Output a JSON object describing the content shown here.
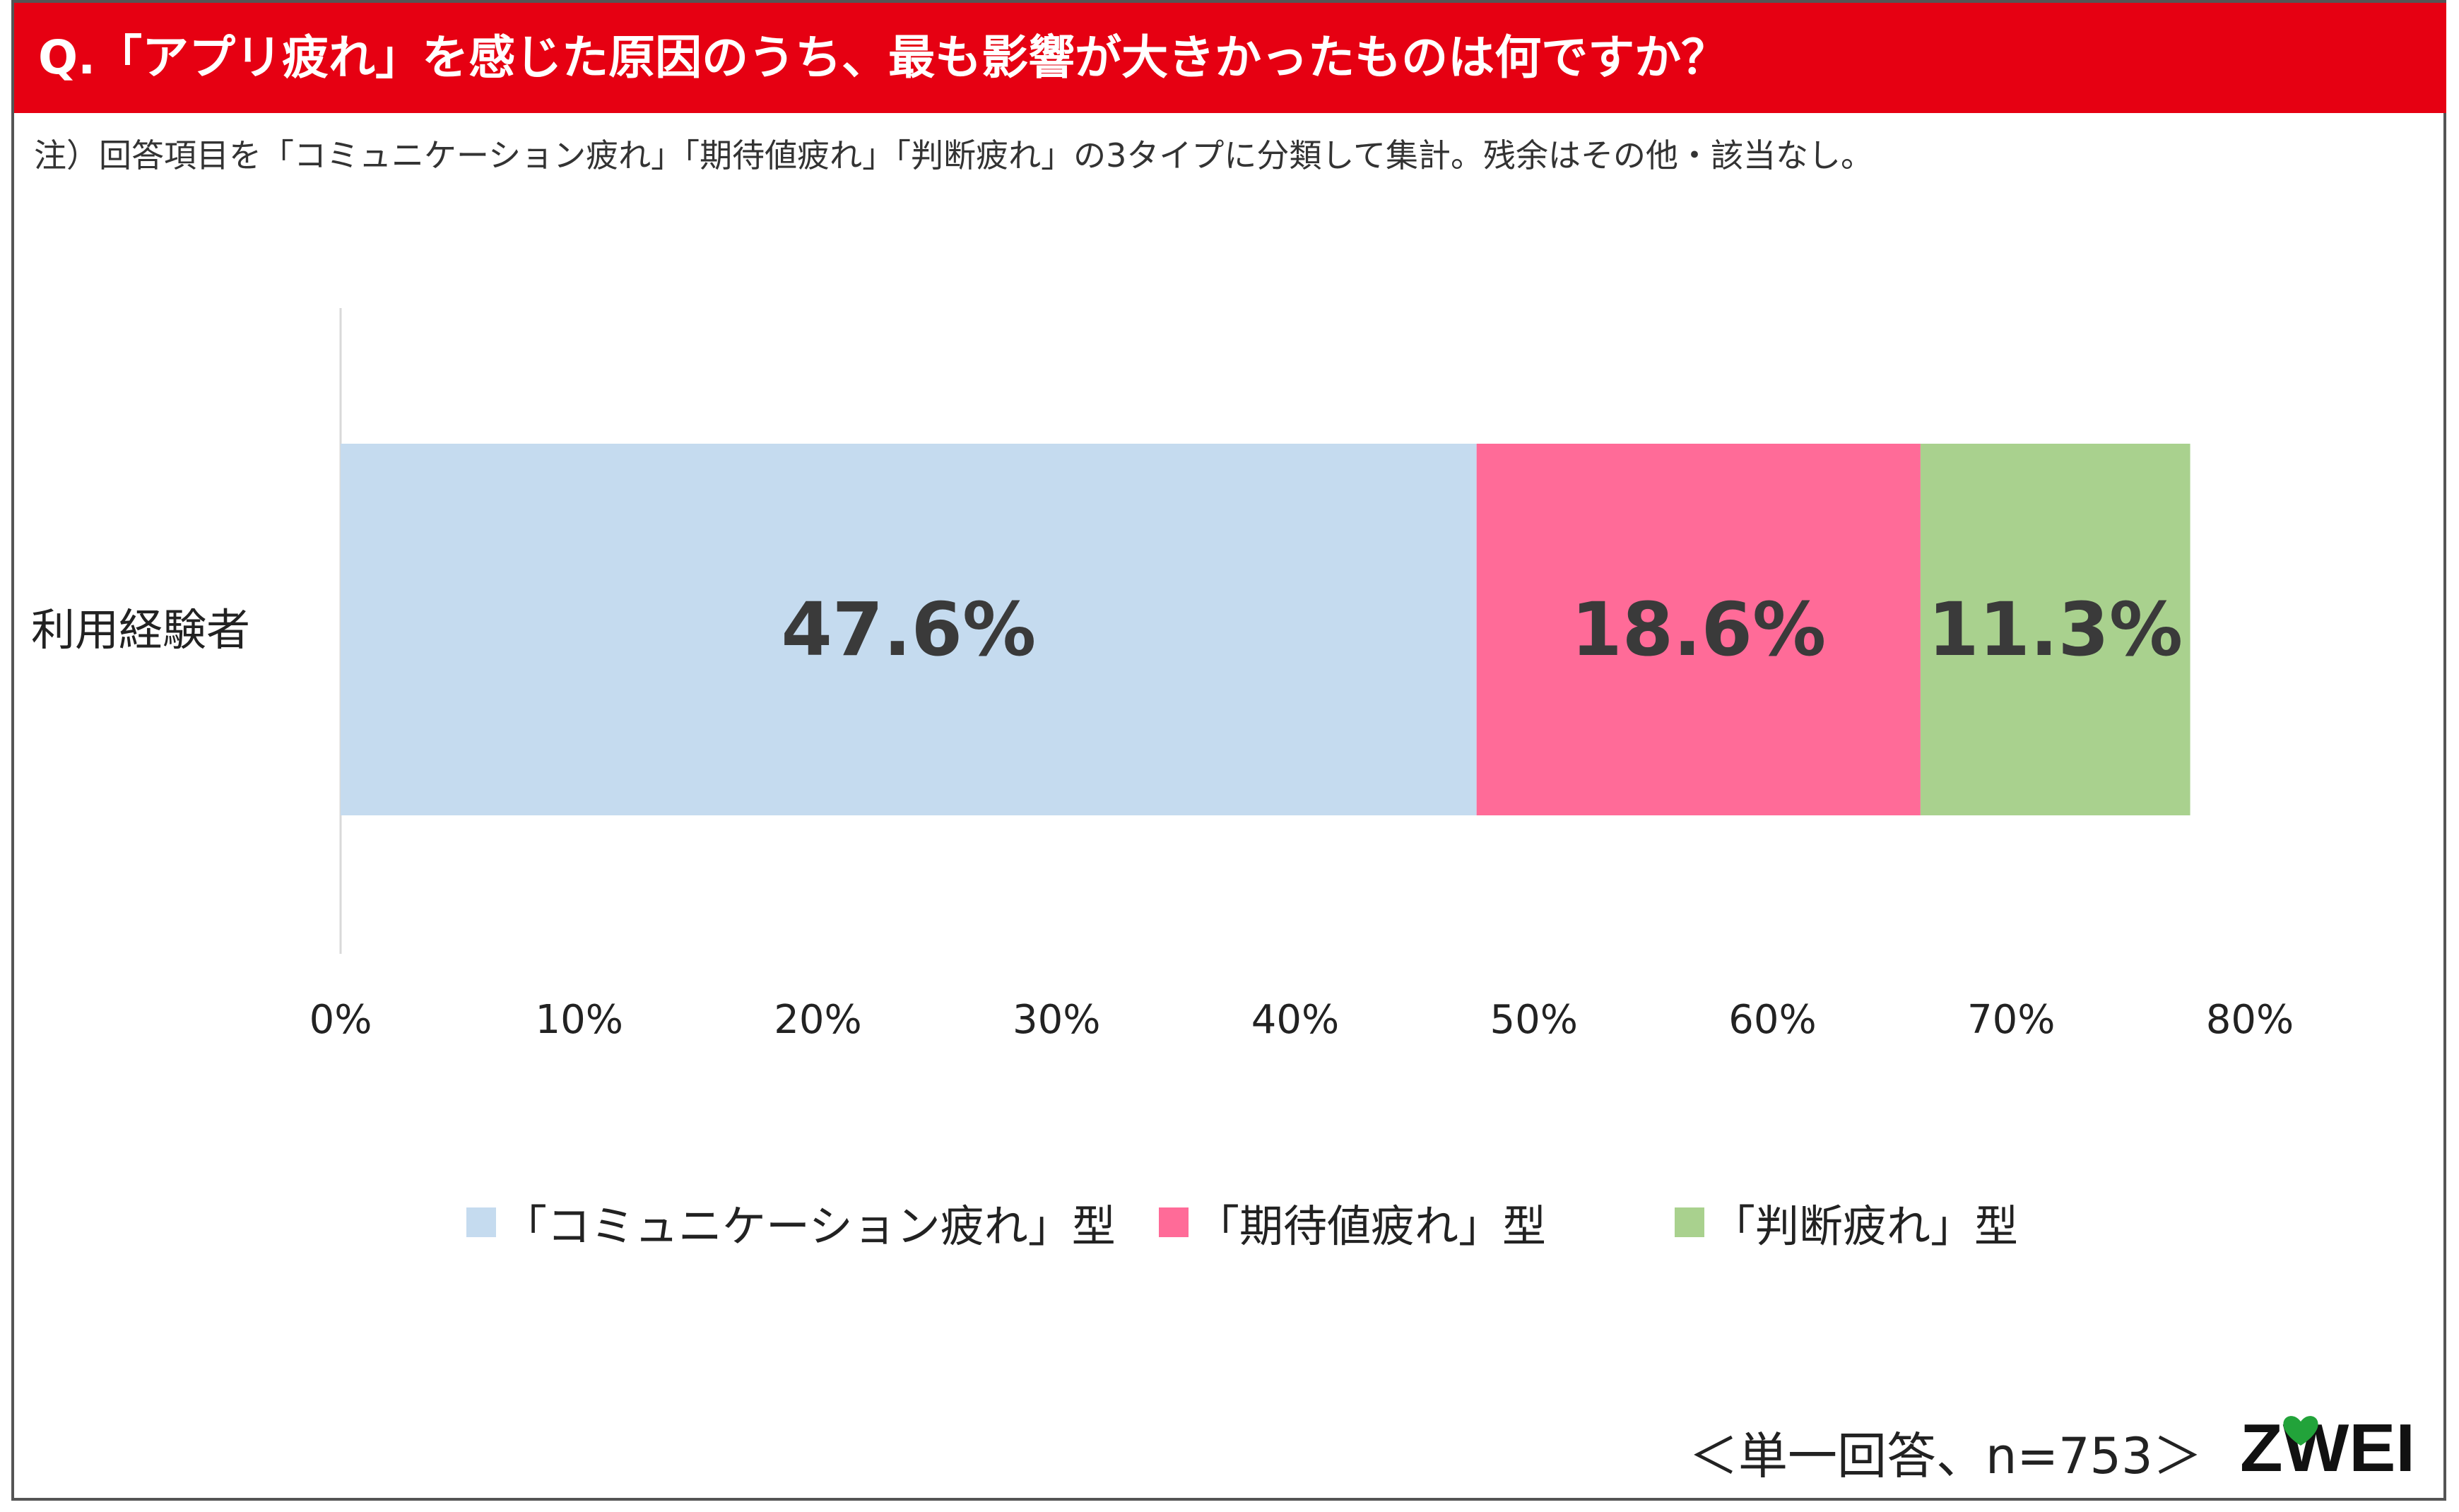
{
  "header": {
    "title": "Q.「アプリ疲れ」を感じた原因のうち、最も影響が大きかったものは何ですか？",
    "note": "注）回答項目を「コミュニケーション疲れ」「期待値疲れ」「判断疲れ」の3タイプに分類して集計。残余はその他・該当なし。"
  },
  "chart_data": {
    "type": "bar",
    "orientation": "horizontal",
    "stacked": true,
    "categories": [
      "利用経験者"
    ],
    "series": [
      {
        "name": "「コミュニケーション疲れ」型",
        "values": [
          47.6
        ],
        "label": "47.6%",
        "color": "#C5DBEF"
      },
      {
        "name": "「期待値疲れ」型",
        "values": [
          18.6
        ],
        "label": "18.6%",
        "color": "#FF6B98"
      },
      {
        "name": "「判断疲れ」型",
        "values": [
          11.3
        ],
        "label": "11.3%",
        "color": "#A9D18E"
      }
    ],
    "xlim": [
      0,
      80
    ],
    "xticks": [
      "0%",
      "10%",
      "20%",
      "30%",
      "40%",
      "50%",
      "60%",
      "70%",
      "80%"
    ],
    "grid": false,
    "legend_position": "bottom"
  },
  "footer": {
    "sample_note": "＜単一回答、n=753＞",
    "logo_text": "ZWEI"
  },
  "colors": {
    "title_bar": "#E60012",
    "logo": "#111111",
    "logo_heart": "#22A33A"
  }
}
